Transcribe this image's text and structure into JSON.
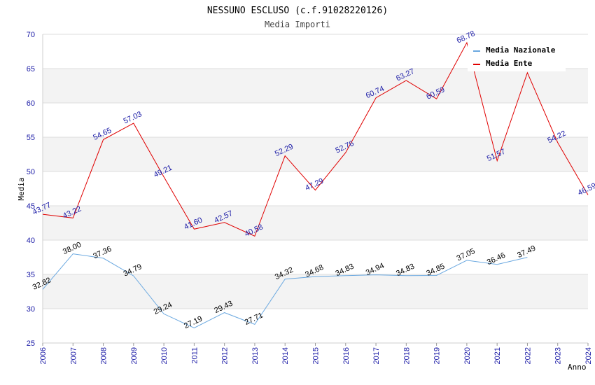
{
  "chart_data": {
    "type": "line",
    "title": "NESSUNO ESCLUSO (c.f.91028220126)",
    "subtitle": "Media Importi",
    "xlabel": "Anno",
    "ylabel": "Media",
    "ylim": [
      25,
      70
    ],
    "yticks": [
      25,
      30,
      35,
      40,
      45,
      50,
      55,
      60,
      65,
      70
    ],
    "x": [
      2006,
      2007,
      2008,
      2009,
      2010,
      2011,
      2012,
      2013,
      2014,
      2015,
      2016,
      2017,
      2018,
      2019,
      2020,
      2021,
      2022,
      2023,
      2024
    ],
    "legend_position": "top-right",
    "grid": true,
    "series": [
      {
        "name": "Media Nazionale",
        "color": "#6aa8e0",
        "values": [
          32.82,
          38.0,
          37.36,
          34.79,
          29.24,
          27.19,
          29.43,
          27.71,
          34.32,
          34.68,
          34.83,
          34.94,
          34.83,
          34.85,
          37.05,
          36.46,
          37.49,
          null,
          null
        ],
        "labels": [
          "32.82",
          "38.00",
          "37.36",
          "34.79",
          "29.24",
          "27.19",
          "29.43",
          "27.71",
          "34.32",
          "34.68",
          "34.83",
          "34.94",
          "34.83",
          "34.85",
          "37.05",
          "36.46",
          "37.49",
          "",
          ""
        ]
      },
      {
        "name": "Media Ente",
        "color": "#e00000",
        "values": [
          43.77,
          43.22,
          54.65,
          57.03,
          49.21,
          41.6,
          42.57,
          40.58,
          52.29,
          47.29,
          52.76,
          60.74,
          63.27,
          60.59,
          68.78,
          51.57,
          64.4,
          54.22,
          46.59
        ],
        "labels": [
          "43.77",
          "43.22",
          "54.65",
          "57.03",
          "49.21",
          "41.60",
          "42.57",
          "40.58",
          "52.29",
          "47.29",
          "52.76",
          "60.74",
          "63.27",
          "60.59",
          "68.78",
          "51.57",
          "",
          "54.22",
          "46.59"
        ]
      }
    ]
  }
}
